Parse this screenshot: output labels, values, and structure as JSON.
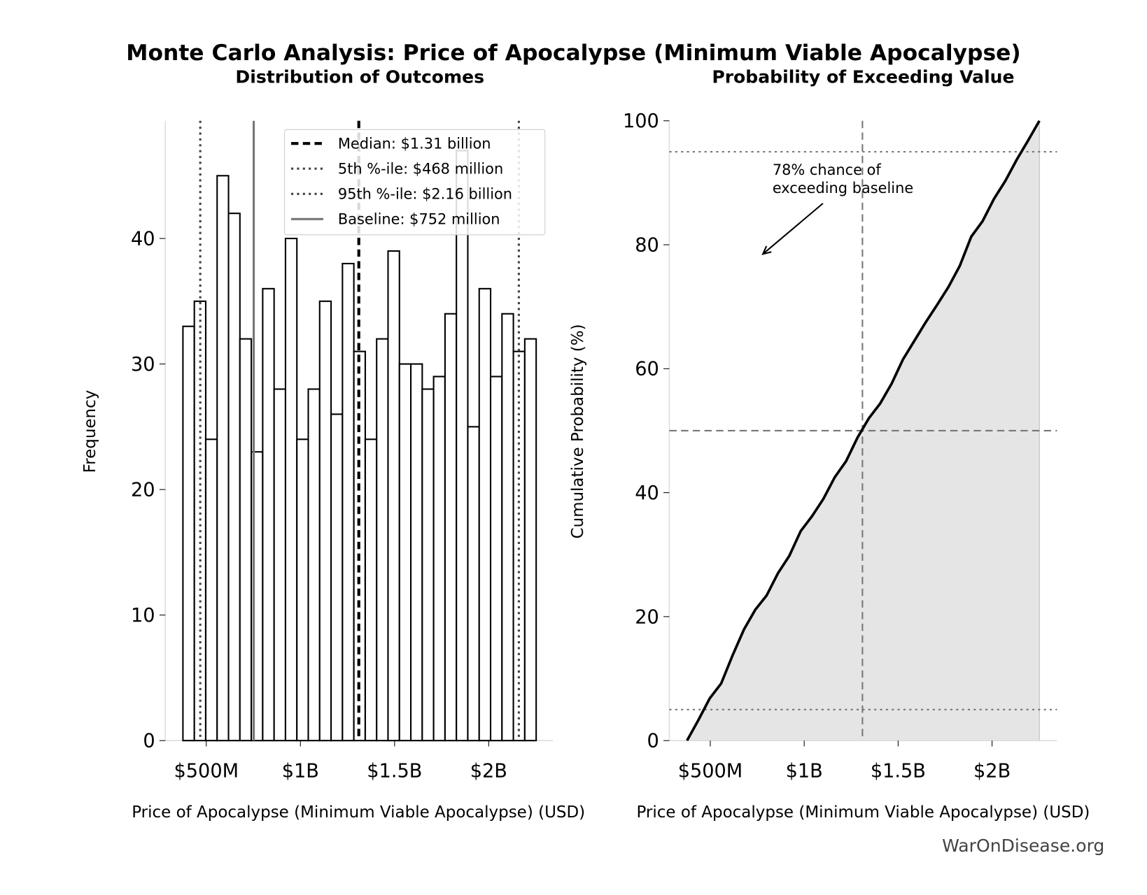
{
  "title": "Monte Carlo Analysis: Price of Apocalypse (Minimum Viable Apocalypse)",
  "watermark": "WarOnDisease.org",
  "chart_data": [
    {
      "type": "bar",
      "title": "Distribution of Outcomes",
      "xlabel": "Price of Apocalypse (Minimum Viable Apocalypse) (USD)",
      "ylabel": "Frequency",
      "x_unit": "billion USD",
      "bin_range": [
        0.376,
        2.252
      ],
      "values": [
        33,
        35,
        24,
        45,
        42,
        32,
        23,
        36,
        28,
        40,
        24,
        28,
        35,
        26,
        38,
        31,
        24,
        32,
        39,
        30,
        30,
        28,
        29,
        34,
        47,
        25,
        36,
        29,
        34,
        31,
        32
      ],
      "xlim": [
        0.2,
        2.35
      ],
      "ylim": [
        0,
        49.5
      ],
      "xticks": [
        {
          "v": 0.5,
          "label": "$500M"
        },
        {
          "v": 1.0,
          "label": "$1B"
        },
        {
          "v": 1.5,
          "label": "$1.5B"
        },
        {
          "v": 2.0,
          "label": "$2B"
        }
      ],
      "yticks": [
        {
          "v": 0,
          "label": "0"
        },
        {
          "v": 10,
          "label": "10"
        },
        {
          "v": 20,
          "label": "20"
        },
        {
          "v": 30,
          "label": "30"
        },
        {
          "v": 40,
          "label": "40"
        }
      ],
      "reference_lines": [
        {
          "name": "Median: $1.31 billion",
          "x": 1.31,
          "style": "dashed",
          "color": "#000000"
        },
        {
          "name": "5th %-ile: $468 million",
          "x": 0.468,
          "style": "dotted",
          "color": "#444444"
        },
        {
          "name": "95th %-ile: $2.16 billion",
          "x": 2.16,
          "style": "dotted",
          "color": "#444444"
        },
        {
          "name": "Baseline: $752 million",
          "x": 0.752,
          "style": "solid",
          "color": "#777777"
        }
      ],
      "legend": "top-right",
      "grid": false
    },
    {
      "type": "area",
      "title": "Probability of Exceeding Value",
      "xlabel": "Price of Apocalypse (Minimum Viable Apocalypse) (USD)",
      "ylabel": "Cumulative Probability (%)",
      "x_unit": "billion USD",
      "xlim": [
        0.3,
        2.35
      ],
      "ylim": [
        0,
        100
      ],
      "xticks": [
        {
          "v": 0.5,
          "label": "$500M"
        },
        {
          "v": 1.0,
          "label": "$1B"
        },
        {
          "v": 1.5,
          "label": "$1.5B"
        },
        {
          "v": 2.0,
          "label": "$2B"
        }
      ],
      "yticks": [
        {
          "v": 0,
          "label": "0"
        },
        {
          "v": 20,
          "label": "20"
        },
        {
          "v": 40,
          "label": "40"
        },
        {
          "v": 60,
          "label": "60"
        },
        {
          "v": 80,
          "label": "80"
        },
        {
          "v": 100,
          "label": "100"
        }
      ],
      "hlines": [
        {
          "y": 5,
          "style": "dotted"
        },
        {
          "y": 50,
          "style": "dashed"
        },
        {
          "y": 95,
          "style": "dotted"
        }
      ],
      "vlines": [
        {
          "x": 1.31,
          "style": "dashed"
        }
      ],
      "annotation": {
        "lines": [
          "78% chance of",
          "exceeding baseline"
        ],
        "arrow_to": {
          "x": 0.78,
          "y": 78.5
        }
      },
      "fill_color": "#e5e5e5",
      "grid": false
    }
  ]
}
